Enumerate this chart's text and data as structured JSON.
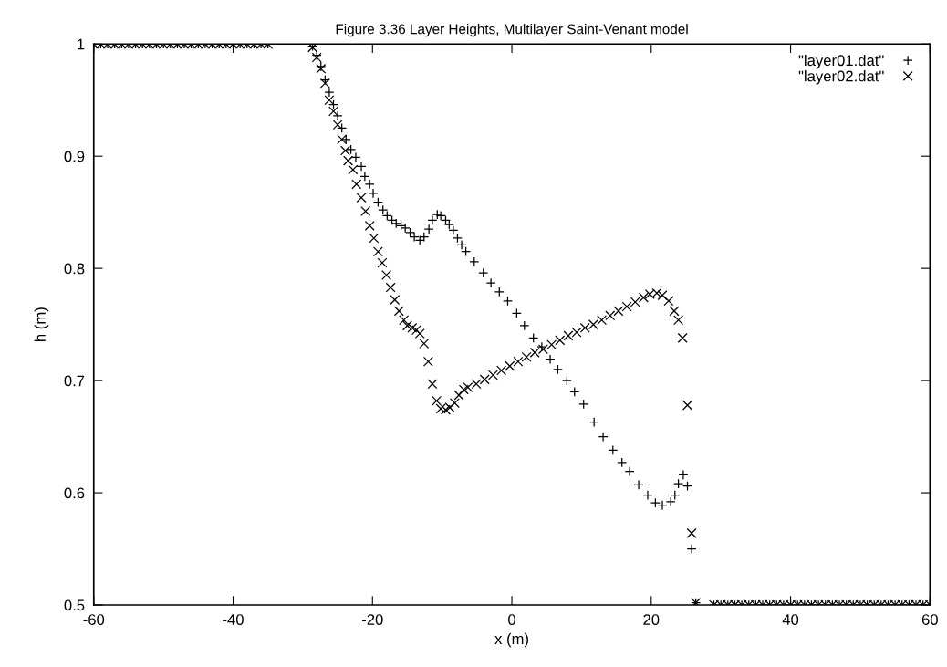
{
  "chart_data": {
    "type": "scatter",
    "title": "Figure 3.36 Layer Heights, Multilayer Saint-Venant model",
    "xlabel": "x (m)",
    "ylabel": "h (m)",
    "xlim": [
      -60,
      60
    ],
    "ylim": [
      0.5,
      1
    ],
    "xticks": [
      -60,
      -40,
      -20,
      0,
      20,
      40,
      60
    ],
    "yticks": [
      0.5,
      0.6,
      0.7,
      0.8,
      0.9,
      1
    ],
    "grid": false,
    "legend": "top right",
    "series": [
      {
        "name": "\"layer01.dat\"",
        "color": "#000000",
        "marker": "plus",
        "x": [
          -60,
          -59,
          -58,
          -57,
          -56,
          -55,
          -54,
          -53,
          -52,
          -51,
          -50,
          -49,
          -48,
          -47,
          -46,
          -45,
          -44,
          -43,
          -42,
          -41,
          -40,
          -39,
          -38,
          -37,
          -36,
          -35,
          -28.6,
          -28.0,
          -27.4,
          -26.8,
          -26.2,
          -25.6,
          -25.0,
          -24.4,
          -23.8,
          -23.1,
          -22.4,
          -21.6,
          -21.1,
          -20.4,
          -19.9,
          -19.2,
          -18.5,
          -17.9,
          -17.2,
          -16.6,
          -15.9,
          -15.3,
          -14.6,
          -14.0,
          -13.2,
          -12.6,
          -11.9,
          -11.4,
          -10.7,
          -10.2,
          -9.5,
          -9.0,
          -8.4,
          -7.8,
          -7.2,
          -6.6,
          -5.4,
          -4.1,
          -3.0,
          -1.8,
          -0.6,
          0.7,
          1.8,
          3.1,
          4.3,
          5.5,
          6.6,
          7.9,
          9.0,
          10.3,
          11.8,
          13.1,
          14.5,
          15.8,
          16.9,
          18.2,
          19.5,
          20.6,
          21.6,
          22.8,
          23.4,
          23.9,
          24.6,
          25.2,
          25.8,
          26.4,
          29,
          30,
          31,
          32,
          33,
          34,
          35,
          36,
          37,
          38,
          39,
          40,
          41,
          42,
          43,
          44,
          45,
          46,
          47,
          48,
          49,
          50,
          51,
          52,
          53,
          54,
          55,
          56,
          57,
          58,
          59,
          60
        ],
        "values": [
          1,
          1,
          1,
          1,
          1,
          1,
          1,
          1,
          1,
          1,
          1,
          1,
          1,
          1,
          1,
          1,
          1,
          1,
          1,
          1,
          1,
          1,
          1,
          1,
          1,
          1,
          0.998,
          0.99,
          0.98,
          0.968,
          0.957,
          0.946,
          0.936,
          0.925,
          0.915,
          0.906,
          0.899,
          0.891,
          0.882,
          0.875,
          0.867,
          0.859,
          0.852,
          0.847,
          0.843,
          0.84,
          0.838,
          0.836,
          0.832,
          0.828,
          0.825,
          0.828,
          0.835,
          0.843,
          0.848,
          0.847,
          0.843,
          0.839,
          0.834,
          0.827,
          0.821,
          0.815,
          0.806,
          0.796,
          0.787,
          0.779,
          0.771,
          0.76,
          0.749,
          0.738,
          0.73,
          0.719,
          0.71,
          0.7,
          0.69,
          0.679,
          0.663,
          0.65,
          0.638,
          0.627,
          0.619,
          0.607,
          0.598,
          0.591,
          0.589,
          0.592,
          0.598,
          0.608,
          0.616,
          0.606,
          0.55,
          0.502,
          0.5,
          0.5,
          0.5,
          0.5,
          0.5,
          0.5,
          0.5,
          0.5,
          0.5,
          0.5,
          0.5,
          0.5,
          0.5,
          0.5,
          0.5,
          0.5,
          0.5,
          0.5,
          0.5,
          0.5,
          0.5,
          0.5,
          0.5,
          0.5,
          0.5,
          0.5,
          0.5,
          0.5,
          0.5,
          0.5,
          0.5,
          0.5
        ]
      },
      {
        "name": "\"layer02.dat\"",
        "color": "#000000",
        "marker": "cross",
        "x": [
          -60,
          -59,
          -58,
          -57,
          -56,
          -55,
          -54,
          -53,
          -52,
          -51,
          -50,
          -49,
          -48,
          -47,
          -46,
          -45,
          -44,
          -43,
          -42,
          -41,
          -40,
          -39,
          -38,
          -37,
          -36,
          -35,
          -28.6,
          -28.0,
          -27.4,
          -26.8,
          -26.2,
          -25.6,
          -25.0,
          -24.4,
          -23.9,
          -23.5,
          -22.8,
          -22.3,
          -21.6,
          -21.0,
          -20.4,
          -19.8,
          -19.2,
          -18.6,
          -18.0,
          -17.4,
          -16.8,
          -16.2,
          -15.5,
          -15.0,
          -14.3,
          -13.7,
          -13.2,
          -12.6,
          -12.0,
          -11.4,
          -10.8,
          -10.2,
          -9.5,
          -8.9,
          -8.2,
          -7.6,
          -6.9,
          -6.3,
          -5.1,
          -3.9,
          -2.7,
          -1.5,
          -0.3,
          0.9,
          2.1,
          3.3,
          4.5,
          5.7,
          6.9,
          8.1,
          9.3,
          10.5,
          11.7,
          12.9,
          14.1,
          15.3,
          16.5,
          17.7,
          18.9,
          19.8,
          20.8,
          21.6,
          22.5,
          23.3,
          23.9,
          24.5,
          25.2,
          25.8,
          26.4,
          29,
          30,
          31,
          32,
          33,
          34,
          35,
          36,
          37,
          38,
          39,
          40,
          41,
          42,
          43,
          44,
          45,
          46,
          47,
          48,
          49,
          50,
          51,
          52,
          53,
          54,
          55,
          56,
          57,
          58,
          59,
          60
        ],
        "values": [
          1,
          1,
          1,
          1,
          1,
          1,
          1,
          1,
          1,
          1,
          1,
          1,
          1,
          1,
          1,
          1,
          1,
          1,
          1,
          1,
          1,
          1,
          1,
          1,
          1,
          1,
          0.997,
          0.988,
          0.978,
          0.965,
          0.95,
          0.94,
          0.928,
          0.915,
          0.905,
          0.896,
          0.888,
          0.875,
          0.863,
          0.851,
          0.838,
          0.827,
          0.815,
          0.805,
          0.794,
          0.783,
          0.772,
          0.762,
          0.754,
          0.749,
          0.747,
          0.745,
          0.742,
          0.733,
          0.717,
          0.697,
          0.682,
          0.675,
          0.674,
          0.676,
          0.68,
          0.687,
          0.692,
          0.694,
          0.697,
          0.701,
          0.705,
          0.709,
          0.713,
          0.717,
          0.721,
          0.725,
          0.728,
          0.732,
          0.736,
          0.74,
          0.743,
          0.747,
          0.75,
          0.754,
          0.758,
          0.762,
          0.766,
          0.77,
          0.774,
          0.777,
          0.778,
          0.776,
          0.771,
          0.762,
          0.754,
          0.738,
          0.678,
          0.564,
          0.502,
          0.5,
          0.5,
          0.5,
          0.5,
          0.5,
          0.5,
          0.5,
          0.5,
          0.5,
          0.5,
          0.5,
          0.5,
          0.5,
          0.5,
          0.5,
          0.5,
          0.5,
          0.5,
          0.5,
          0.5,
          0.5,
          0.5,
          0.5,
          0.5,
          0.5,
          0.5,
          0.5,
          0.5,
          0.5,
          0.5,
          0.5,
          0.5
        ]
      }
    ]
  }
}
